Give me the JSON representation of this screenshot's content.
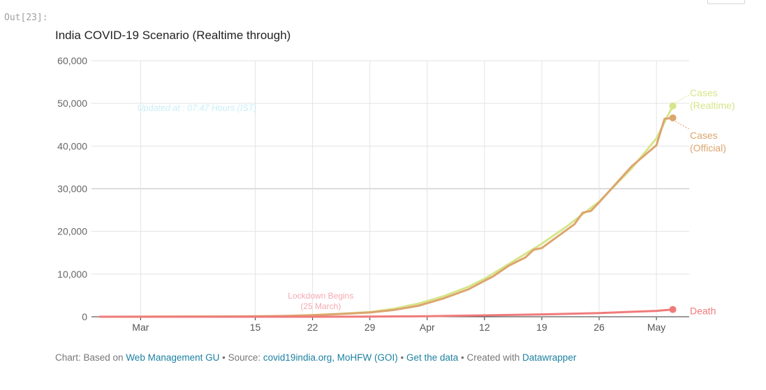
{
  "cell": {
    "prompt": "Out[23]:"
  },
  "chart": {
    "title": "India COVID-19 Scenario (Realtime through)",
    "updated_note": "Updated at : 07:47 Hours (IST)"
  },
  "footer": {
    "prefix": "Chart: Based on ",
    "based_on_link": "Web Management GU",
    "source_prefix": " • Source: ",
    "source_link": "covid19india.org, MoHFW (GOI)",
    "sep1": " • ",
    "data_link": "Get the data",
    "created_prefix": " • Created with ",
    "created_link": "Datawrapper"
  },
  "chart_data": {
    "type": "line",
    "title": "India COVID-19 Scenario (Realtime through)",
    "xlabel": "",
    "ylabel": "",
    "ylim": [
      0,
      60000
    ],
    "yticks": [
      0,
      10000,
      20000,
      30000,
      40000,
      50000,
      60000
    ],
    "ytick_labels": [
      "0",
      "10,000",
      "20,000",
      "30,000",
      "40,000",
      "50,000",
      "60,000"
    ],
    "xlim": [
      "2020-02-24",
      "2020-05-07"
    ],
    "xticks": [
      "2020-03-01",
      "2020-03-15",
      "2020-03-22",
      "2020-03-29",
      "2020-04-05",
      "2020-04-12",
      "2020-04-19",
      "2020-04-26",
      "2020-05-03"
    ],
    "xtick_labels": [
      "Mar",
      "15",
      "22",
      "29",
      "Apr",
      "12",
      "19",
      "26",
      "May"
    ],
    "grid": true,
    "series": [
      {
        "name": "Cases (Realtime)",
        "label_lines": [
          "Cases",
          "(Realtime)"
        ],
        "color": "#d7e58a",
        "points": [
          [
            "2020-02-25",
            0
          ],
          [
            "2020-03-05",
            30
          ],
          [
            "2020-03-12",
            75
          ],
          [
            "2020-03-15",
            110
          ],
          [
            "2020-03-19",
            200
          ],
          [
            "2020-03-22",
            400
          ],
          [
            "2020-03-25",
            650
          ],
          [
            "2020-03-29",
            1100
          ],
          [
            "2020-04-01",
            1900
          ],
          [
            "2020-04-04",
            3100
          ],
          [
            "2020-04-07",
            4800
          ],
          [
            "2020-04-10",
            7000
          ],
          [
            "2020-04-12",
            8900
          ],
          [
            "2020-04-15",
            12400
          ],
          [
            "2020-04-19",
            17100
          ],
          [
            "2020-04-22",
            21100
          ],
          [
            "2020-04-26",
            27000
          ],
          [
            "2020-04-30",
            34800
          ],
          [
            "2020-05-03",
            41800
          ],
          [
            "2020-05-05",
            49400
          ]
        ]
      },
      {
        "name": "Cases (Official)",
        "label_lines": [
          "Cases",
          "(Official)"
        ],
        "color": "#dca56e",
        "points": [
          [
            "2020-02-25",
            0
          ],
          [
            "2020-03-05",
            30
          ],
          [
            "2020-03-12",
            70
          ],
          [
            "2020-03-15",
            105
          ],
          [
            "2020-03-19",
            190
          ],
          [
            "2020-03-22",
            360
          ],
          [
            "2020-03-25",
            600
          ],
          [
            "2020-03-29",
            1000
          ],
          [
            "2020-04-01",
            1600
          ],
          [
            "2020-04-04",
            2600
          ],
          [
            "2020-04-07",
            4300
          ],
          [
            "2020-04-10",
            6400
          ],
          [
            "2020-04-12",
            8400
          ],
          [
            "2020-04-13",
            9400
          ],
          [
            "2020-04-15",
            12000
          ],
          [
            "2020-04-17",
            13900
          ],
          [
            "2020-04-18",
            15700
          ],
          [
            "2020-04-19",
            16100
          ],
          [
            "2020-04-23",
            21700
          ],
          [
            "2020-04-24",
            24400
          ],
          [
            "2020-04-25",
            24800
          ],
          [
            "2020-04-26",
            26800
          ],
          [
            "2020-04-30",
            35300
          ],
          [
            "2020-05-03",
            40200
          ],
          [
            "2020-05-04",
            46400
          ],
          [
            "2020-05-05",
            46600
          ]
        ]
      },
      {
        "name": "Death",
        "label_lines": [
          "Death"
        ],
        "color": "#f07a7a",
        "points": [
          [
            "2020-02-25",
            0
          ],
          [
            "2020-03-15",
            2
          ],
          [
            "2020-03-22",
            7
          ],
          [
            "2020-03-29",
            25
          ],
          [
            "2020-04-05",
            110
          ],
          [
            "2020-04-12",
            320
          ],
          [
            "2020-04-19",
            560
          ],
          [
            "2020-04-26",
            870
          ],
          [
            "2020-05-03",
            1370
          ],
          [
            "2020-05-05",
            1700
          ]
        ]
      }
    ],
    "annotations": [
      {
        "text_lines": [
          "Lockdown Begins",
          "(25 March)"
        ],
        "x": "2020-03-23",
        "y": 2300,
        "color": "#f4a9b1"
      }
    ]
  }
}
